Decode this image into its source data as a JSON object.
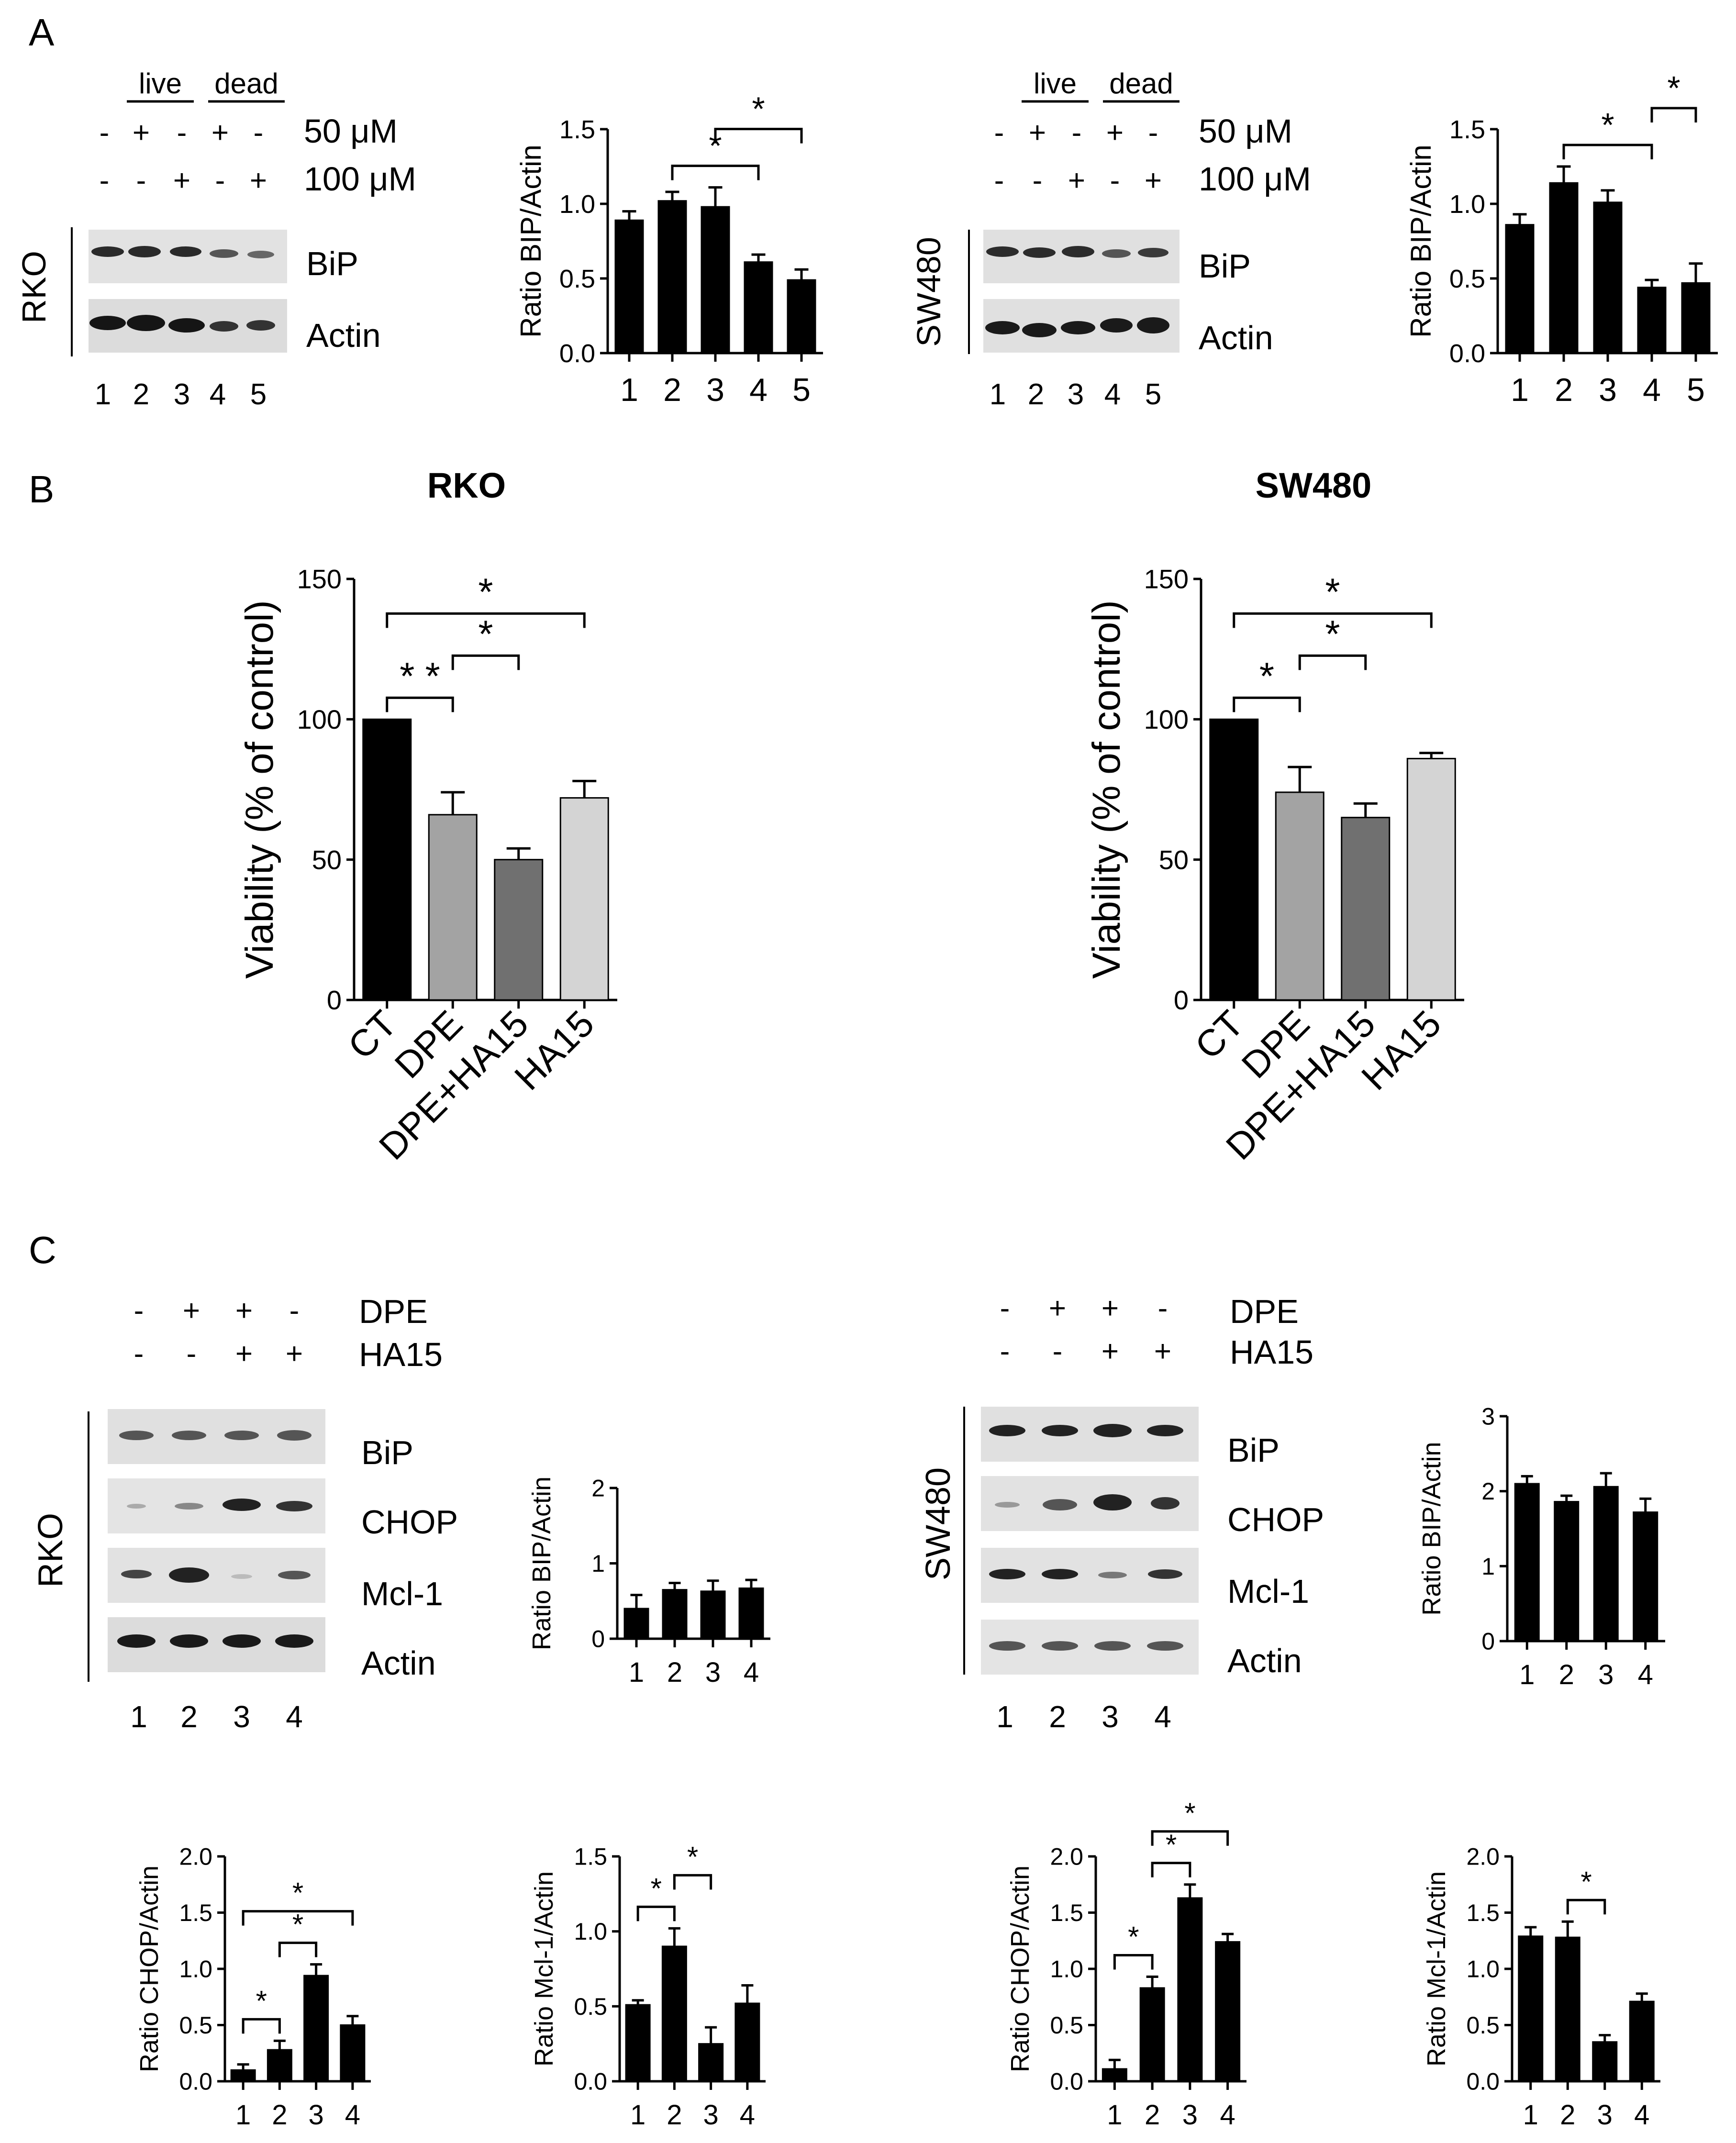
{
  "panels": {
    "A": {
      "letter": "A",
      "left": {
        "cell_line": "RKO",
        "groups": [
          "live",
          "dead"
        ],
        "conditions": [
          {
            "label": "50 μM",
            "signs": [
              "-",
              "+",
              "-",
              "+",
              "-"
            ]
          },
          {
            "label": "100 μM",
            "signs": [
              "-",
              "-",
              "+",
              "-",
              "+"
            ]
          }
        ],
        "bands": [
          "BiP",
          "Actin"
        ],
        "lanes": [
          "1",
          "2",
          "3",
          "4",
          "5"
        ]
      },
      "right": {
        "cell_line": "SW480",
        "groups": [
          "live",
          "dead"
        ],
        "conditions": [
          {
            "label": "50 μM",
            "signs": [
              "-",
              "+",
              "-",
              "+",
              "-"
            ]
          },
          {
            "label": "100 μM",
            "signs": [
              "-",
              "-",
              "+",
              "-",
              "+"
            ]
          }
        ],
        "bands": [
          "BiP",
          "Actin"
        ],
        "lanes": [
          "1",
          "2",
          "3",
          "4",
          "5"
        ]
      }
    },
    "B": {
      "letter": "B"
    },
    "C": {
      "letter": "C",
      "left": {
        "cell_line": "RKO",
        "conditions": [
          {
            "label": "DPE",
            "signs": [
              "-",
              "+",
              "+",
              "-"
            ]
          },
          {
            "label": "HA15",
            "signs": [
              "-",
              "-",
              "+",
              "+"
            ]
          }
        ],
        "bands": [
          "BiP",
          "CHOP",
          "Mcl-1",
          "Actin"
        ],
        "lanes": [
          "1",
          "2",
          "3",
          "4"
        ]
      },
      "right": {
        "cell_line": "SW480",
        "conditions": [
          {
            "label": "DPE",
            "signs": [
              "-",
              "+",
              "+",
              "-"
            ]
          },
          {
            "label": "HA15",
            "signs": [
              "-",
              "-",
              "+",
              "+"
            ]
          }
        ],
        "bands": [
          "BiP",
          "CHOP",
          "Mcl-1",
          "Actin"
        ],
        "lanes": [
          "1",
          "2",
          "3",
          "4"
        ]
      }
    }
  },
  "chart_data": [
    {
      "id": "A-RKO",
      "type": "bar",
      "title": "",
      "ylabel": "Ratio BIP/Actin",
      "xlabel": "",
      "categories": [
        "1",
        "2",
        "3",
        "4",
        "5"
      ],
      "values": [
        0.89,
        1.02,
        0.98,
        0.61,
        0.49
      ],
      "errors": [
        0.06,
        0.06,
        0.13,
        0.05,
        0.07
      ],
      "ylim": [
        0,
        1.5
      ],
      "yticks": [
        "0.0",
        "0.5",
        "1.0",
        "1.5"
      ],
      "significance": [
        {
          "from": 2,
          "to": 4,
          "label": "*"
        },
        {
          "from": 3,
          "to": 5,
          "label": "*"
        }
      ]
    },
    {
      "id": "A-SW480",
      "type": "bar",
      "title": "",
      "ylabel": "Ratio BIP/Actin",
      "xlabel": "",
      "categories": [
        "1",
        "2",
        "3",
        "4",
        "5"
      ],
      "values": [
        0.86,
        1.14,
        1.01,
        0.44,
        0.47
      ],
      "errors": [
        0.07,
        0.11,
        0.08,
        0.05,
        0.13
      ],
      "ylim": [
        0,
        1.5
      ],
      "yticks": [
        "0.0",
        "0.5",
        "1.0",
        "1.5"
      ],
      "significance": [
        {
          "from": 2,
          "to": 4,
          "label": "*"
        },
        {
          "from": 4,
          "to": 5,
          "label": "*"
        }
      ]
    },
    {
      "id": "B-RKO",
      "type": "bar",
      "title": "RKO",
      "ylabel": "Viability (% of control)",
      "xlabel": "",
      "categories": [
        "CT",
        "DPE",
        "DPE+HA15",
        "HA15"
      ],
      "values": [
        100,
        66,
        50,
        72
      ],
      "errors": [
        0,
        8,
        4,
        6
      ],
      "ylim": [
        0,
        150
      ],
      "yticks": [
        "0",
        "50",
        "100",
        "150"
      ],
      "colors": [
        "#000000",
        "#a3a3a3",
        "#707070",
        "#d4d4d4"
      ],
      "significance": [
        {
          "from": 1,
          "to": 2,
          "label": "* *"
        },
        {
          "from": 2,
          "to": 3,
          "label": "*"
        },
        {
          "from": 1,
          "to": 4,
          "label": "*"
        }
      ]
    },
    {
      "id": "B-SW480",
      "type": "bar",
      "title": "SW480",
      "ylabel": "Viability (% of control)",
      "xlabel": "",
      "categories": [
        "CT",
        "DPE",
        "DPE+HA15",
        "HA15"
      ],
      "values": [
        100,
        74,
        65,
        86
      ],
      "errors": [
        0,
        9,
        5,
        2
      ],
      "ylim": [
        0,
        150
      ],
      "yticks": [
        "0",
        "50",
        "100",
        "150"
      ],
      "colors": [
        "#000000",
        "#a3a3a3",
        "#707070",
        "#d4d4d4"
      ],
      "significance": [
        {
          "from": 1,
          "to": 2,
          "label": "*"
        },
        {
          "from": 2,
          "to": 3,
          "label": "*"
        },
        {
          "from": 1,
          "to": 4,
          "label": "*"
        }
      ]
    },
    {
      "id": "C-RKO-BIP",
      "type": "bar",
      "title": "",
      "ylabel": "Ratio BIP/Actin",
      "xlabel": "",
      "categories": [
        "1",
        "2",
        "3",
        "4"
      ],
      "values": [
        0.4,
        0.65,
        0.63,
        0.67
      ],
      "errors": [
        0.18,
        0.09,
        0.14,
        0.11
      ],
      "ylim": [
        0,
        2
      ],
      "yticks": [
        "0",
        "1",
        "2"
      ],
      "significance": []
    },
    {
      "id": "C-SW480-BIP",
      "type": "bar",
      "title": "",
      "ylabel": "Ratio BIP/Actin",
      "xlabel": "",
      "categories": [
        "1",
        "2",
        "3",
        "4"
      ],
      "values": [
        2.1,
        1.86,
        2.06,
        1.72
      ],
      "errors": [
        0.1,
        0.08,
        0.18,
        0.18
      ],
      "ylim": [
        0,
        3
      ],
      "yticks": [
        "0",
        "1",
        "2",
        "3"
      ],
      "significance": []
    },
    {
      "id": "C-RKO-CHOP",
      "type": "bar",
      "title": "",
      "ylabel": "Ratio CHOP/Actin",
      "xlabel": "",
      "categories": [
        "1",
        "2",
        "3",
        "4"
      ],
      "values": [
        0.1,
        0.28,
        0.94,
        0.5
      ],
      "errors": [
        0.05,
        0.08,
        0.1,
        0.08
      ],
      "ylim": [
        0,
        2
      ],
      "yticks": [
        "0.0",
        "0.5",
        "1.0",
        "1.5",
        "2.0"
      ],
      "significance": [
        {
          "from": 1,
          "to": 2,
          "label": "*"
        },
        {
          "from": 2,
          "to": 3,
          "label": "*"
        },
        {
          "from": 1,
          "to": 4,
          "label": "*"
        }
      ]
    },
    {
      "id": "C-RKO-MCL1",
      "type": "bar",
      "title": "",
      "ylabel": "Ratio Mcl-1/Actin",
      "xlabel": "",
      "categories": [
        "1",
        "2",
        "3",
        "4"
      ],
      "values": [
        0.51,
        0.9,
        0.25,
        0.52
      ],
      "errors": [
        0.03,
        0.12,
        0.11,
        0.12
      ],
      "ylim": [
        0,
        1.5
      ],
      "yticks": [
        "0.0",
        "0.5",
        "1.0",
        "1.5"
      ],
      "significance": [
        {
          "from": 1,
          "to": 2,
          "label": "*"
        },
        {
          "from": 2,
          "to": 3,
          "label": "*"
        }
      ]
    },
    {
      "id": "C-SW480-CHOP",
      "type": "bar",
      "title": "",
      "ylabel": "Ratio CHOP/Actin",
      "xlabel": "",
      "categories": [
        "1",
        "2",
        "3",
        "4"
      ],
      "values": [
        0.11,
        0.83,
        1.63,
        1.24
      ],
      "errors": [
        0.08,
        0.1,
        0.12,
        0.07
      ],
      "ylim": [
        0,
        2
      ],
      "yticks": [
        "0.0",
        "0.5",
        "1.0",
        "1.5",
        "2.0"
      ],
      "significance": [
        {
          "from": 1,
          "to": 2,
          "label": "*"
        },
        {
          "from": 2,
          "to": 3,
          "label": "*"
        },
        {
          "from": 2,
          "to": 4,
          "label": "*"
        }
      ]
    },
    {
      "id": "C-SW480-MCL1",
      "type": "bar",
      "title": "",
      "ylabel": "Ratio Mcl-1/Actin",
      "xlabel": "",
      "categories": [
        "1",
        "2",
        "3",
        "4"
      ],
      "values": [
        1.29,
        1.28,
        0.35,
        0.71
      ],
      "errors": [
        0.08,
        0.14,
        0.06,
        0.07
      ],
      "ylim": [
        0,
        2
      ],
      "yticks": [
        "0.0",
        "0.5",
        "1.0",
        "1.5",
        "2.0"
      ],
      "significance": [
        {
          "from": 2,
          "to": 3,
          "label": "*"
        }
      ]
    }
  ]
}
